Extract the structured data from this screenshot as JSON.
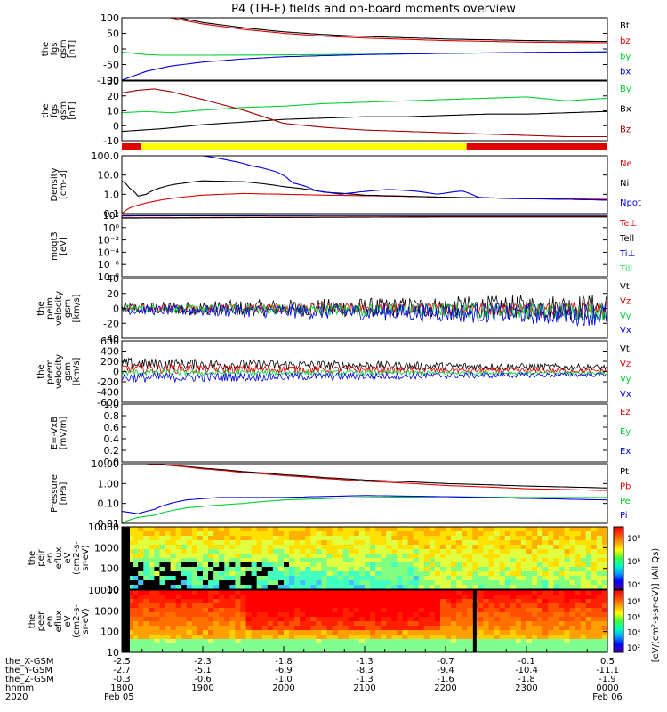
{
  "title": "P4 (TH-E) fields and on-board moments overview",
  "colors": {
    "black": "#000000",
    "red": "#e00000",
    "dred": "#a00000",
    "green": "#00d030",
    "blue": "#0000e0",
    "green2": "#30e060"
  },
  "panels": [
    {
      "id": "fgs-gsm",
      "ylabel": [
        "the",
        "fgs",
        "gsm",
        "[nT]"
      ],
      "type": "line",
      "ylim": [
        -100,
        100
      ],
      "ticks": [
        100,
        50,
        0,
        -50,
        -100
      ],
      "legend": [
        {
          "text": "Bt",
          "color": "black"
        },
        {
          "text": "bz",
          "color": "red"
        },
        {
          "text": "by",
          "color": "green"
        },
        {
          "text": "bx",
          "color": "blue"
        }
      ]
    },
    {
      "id": "fgs-dsl",
      "ylabel": [
        "the",
        "fgs",
        "gsm",
        "[nT]"
      ],
      "type": "line",
      "ylim": [
        -15,
        30
      ],
      "ticks": [
        30,
        20,
        10,
        0,
        -10
      ],
      "legend": [
        {
          "text": "By",
          "color": "green"
        },
        {
          "text": "Bx",
          "color": "black"
        },
        {
          "text": "Bz",
          "color": "dred"
        }
      ]
    },
    {
      "id": "density",
      "ylabel": [
        "Density",
        "[cm-3]"
      ],
      "type": "log",
      "ylim": [
        0.1,
        100
      ],
      "ticks": [
        "100.0",
        "10.0",
        "1.0",
        "0.1"
      ],
      "legend": [
        {
          "text": "Ne",
          "color": "red"
        },
        {
          "text": "Ni",
          "color": "black"
        },
        {
          "text": "Npot",
          "color": "blue"
        }
      ]
    },
    {
      "id": "temperature",
      "ylabel": [
        "moqt3",
        "[eV]"
      ],
      "type": "log",
      "ylim": [
        1e-08,
        100
      ],
      "ticks": [
        "10²",
        "10⁰",
        "10⁻²",
        "10⁻⁴",
        "10⁻⁶",
        "10⁻⁸"
      ],
      "legend": [
        {
          "text": "Te⊥",
          "color": "red"
        },
        {
          "text": "Tell",
          "color": "black"
        },
        {
          "text": "Ti⊥",
          "color": "blue"
        },
        {
          "text": "Till",
          "color": "green2"
        }
      ]
    },
    {
      "id": "peim-velocity",
      "ylabel": [
        "the",
        "peim",
        "velocity",
        "gsm",
        "[km/s]"
      ],
      "type": "line",
      "ylim": [
        -40,
        40
      ],
      "ticks": [
        40,
        20,
        0,
        -20,
        -40
      ],
      "legend": [
        {
          "text": "Vt",
          "color": "black"
        },
        {
          "text": "Vz",
          "color": "red"
        },
        {
          "text": "Vy",
          "color": "green"
        },
        {
          "text": "Vx",
          "color": "blue"
        }
      ]
    },
    {
      "id": "peem-velocity",
      "ylabel": [
        "the",
        "peem",
        "velocity",
        "gsm",
        "[km/s]"
      ],
      "type": "line",
      "ylim": [
        -600,
        600
      ],
      "ticks": [
        600,
        400,
        200,
        0,
        -200,
        -400,
        -600
      ],
      "legend": [
        {
          "text": "Vt",
          "color": "black"
        },
        {
          "text": "Vz",
          "color": "red"
        },
        {
          "text": "Vy",
          "color": "green"
        },
        {
          "text": "Vx",
          "color": "blue"
        }
      ]
    },
    {
      "id": "efield",
      "ylabel": [
        "E=-VxB",
        "[mV/m]"
      ],
      "type": "line",
      "ylim": [
        0,
        1
      ],
      "ticks": [
        "1.0",
        "0.8",
        "0.6",
        "0.4",
        "0.2",
        "0.0"
      ],
      "legend": [
        {
          "text": "Ez",
          "color": "red"
        },
        {
          "text": "Ey",
          "color": "green"
        },
        {
          "text": "Ex",
          "color": "blue"
        }
      ]
    },
    {
      "id": "pressure",
      "ylabel": [
        "Pressure",
        "[nPa]"
      ],
      "type": "log",
      "ylim": [
        0.01,
        10
      ],
      "ticks": [
        "10.00",
        "1.00",
        "0.10",
        "0.01"
      ],
      "legend": [
        {
          "text": "Pt",
          "color": "black"
        },
        {
          "text": "Pb",
          "color": "red"
        },
        {
          "text": "Pe",
          "color": "green"
        },
        {
          "text": "Pi",
          "color": "blue"
        }
      ]
    },
    {
      "id": "peir-spectrogram",
      "ylabel": [
        "the",
        "peir",
        "en",
        "eflux",
        "eV",
        "(cm2-s-",
        "sr-eV)"
      ],
      "type": "spectrogram",
      "ylim": [
        10,
        10000
      ],
      "ticks": [
        "10000",
        "1000",
        "100",
        "10"
      ],
      "colorbar_ticks": [
        "10⁸",
        "10⁶",
        "10⁴"
      ]
    },
    {
      "id": "peer-spectrogram",
      "ylabel": [
        "the",
        "peer",
        "en",
        "eflux",
        "eV",
        "(cm2-s-",
        "sr-eV)"
      ],
      "type": "spectrogram",
      "ylim": [
        10,
        10000
      ],
      "ticks": [
        "10000",
        "1000",
        "100",
        "10"
      ],
      "colorbar_ticks": [
        "10⁸",
        "10⁶",
        "10⁴",
        "10²"
      ]
    }
  ],
  "colorbar_label": "[eV/(cm²-s-sr-eV)] (All Qs)",
  "mode_bar": [
    {
      "from": 0,
      "to": 0.04,
      "color": "red"
    },
    {
      "from": 0.04,
      "to": 0.71,
      "color": "yellow"
    },
    {
      "from": 0.71,
      "to": 1,
      "color": "red"
    }
  ],
  "chart_data": {
    "type": "line",
    "title": "P4 (TH-E) fields and on-board moments overview",
    "x_hours": [
      0,
      1,
      2,
      3,
      4,
      5,
      6
    ],
    "x_labels": [
      "1800",
      "1900",
      "2000",
      "2100",
      "2200",
      "2300",
      "0000"
    ],
    "date_labels": [
      "Feb 05",
      "Feb 06"
    ],
    "ephemeris": {
      "rows": [
        {
          "label": "the_X-GSM",
          "values": [
            "-2.5",
            "-2.3",
            "-1.8",
            "-1.3",
            "-0.7",
            "-0.1",
            "0.5"
          ]
        },
        {
          "label": "the_Y-GSM",
          "values": [
            "-2.7",
            "-5.1",
            "-6.9",
            "-8.3",
            "-9.4",
            "-10.4",
            "-11.1"
          ]
        },
        {
          "label": "the_Z-GSM",
          "values": [
            "-0.3",
            "-0.6",
            "-1.0",
            "-1.3",
            "-1.6",
            "-1.8",
            "-1.9"
          ]
        },
        {
          "label": "hhmm",
          "values": [
            "1800",
            "1900",
            "2000",
            "2100",
            "2200",
            "2300",
            "0000"
          ]
        },
        {
          "label": "2020",
          "values": [
            "Feb 05",
            "",
            "",
            "",
            "",
            "",
            "Feb 06"
          ]
        }
      ]
    },
    "series": {
      "fgs-gsm": [
        {
          "name": "Bt",
          "color": "black",
          "x": [
            0.7,
            1,
            1.5,
            2,
            2.5,
            3,
            4,
            5,
            6
          ],
          "y": [
            100,
            85,
            68,
            55,
            46,
            40,
            32,
            27,
            24
          ]
        },
        {
          "name": "bz",
          "color": "red",
          "x": [
            0.6,
            1,
            1.5,
            2,
            2.5,
            3,
            4,
            5,
            6
          ],
          "y": [
            100,
            80,
            63,
            50,
            41,
            35,
            27,
            22,
            20
          ]
        },
        {
          "name": "by",
          "color": "green",
          "x": [
            0,
            0.3,
            0.5,
            1,
            2,
            3,
            4,
            5,
            6
          ],
          "y": [
            -10,
            -18,
            -20,
            -20,
            -19,
            -17,
            -14,
            -12,
            -10
          ]
        },
        {
          "name": "bx",
          "color": "blue",
          "x": [
            0,
            0.3,
            0.6,
            1,
            1.5,
            2,
            3,
            4,
            5,
            6
          ],
          "y": [
            -100,
            -72,
            -55,
            -42,
            -32,
            -25,
            -18,
            -14,
            -11,
            -9
          ]
        }
      ],
      "fgs-dsl": [
        {
          "name": "By",
          "color": "green",
          "x": [
            0,
            0.3,
            0.6,
            1,
            1.5,
            2,
            2.5,
            3,
            3.5,
            4,
            4.5,
            5,
            5.5,
            6
          ],
          "y": [
            6,
            7,
            6,
            8,
            10,
            11,
            13,
            14,
            15,
            16,
            17,
            18,
            15,
            17
          ]
        },
        {
          "name": "Bx",
          "color": "black",
          "x": [
            0,
            0.5,
            1,
            1.5,
            2,
            2.5,
            3,
            3.5,
            4,
            4.5,
            5,
            5.5,
            6
          ],
          "y": [
            -8,
            -6,
            -3,
            -1,
            1,
            2,
            3,
            3,
            4,
            5,
            5,
            6,
            7
          ]
        },
        {
          "name": "Bz",
          "color": "dred",
          "x": [
            0,
            0.2,
            0.4,
            0.6,
            1,
            1.5,
            2,
            2.5,
            3,
            3.5,
            4,
            4.5,
            5,
            5.5,
            6
          ],
          "y": [
            21,
            23,
            24,
            22,
            16,
            8,
            -2,
            -5,
            -7,
            -8,
            -9,
            -10,
            -11,
            -12,
            -12
          ]
        }
      ],
      "density": [
        {
          "name": "Ne",
          "color": "red",
          "x": [
            0,
            0.1,
            0.3,
            0.6,
            1,
            1.5,
            2,
            2.5,
            3,
            4,
            5,
            6
          ],
          "y": [
            0.1,
            0.2,
            0.35,
            0.6,
            0.9,
            1.1,
            1.0,
            0.9,
            0.85,
            0.7,
            0.6,
            0.55
          ]
        },
        {
          "name": "Ni",
          "color": "black",
          "x": [
            0,
            0.1,
            0.2,
            0.3,
            0.6,
            1,
            1.5,
            2,
            2.5,
            3,
            4,
            5,
            6
          ],
          "y": [
            5,
            2,
            0.8,
            1.0,
            3,
            5,
            4.5,
            2.5,
            1.3,
            0.9,
            0.7,
            0.6,
            0.5
          ]
        },
        {
          "name": "Npot",
          "color": "blue",
          "x": [
            1.0,
            1.3,
            1.6,
            1.9,
            2.1,
            2.4,
            2.7,
            3.0,
            3.3,
            3.6,
            3.9,
            4.2,
            4.4,
            4.8,
            5.5,
            6
          ],
          "y": [
            100,
            60,
            30,
            15,
            4,
            1.5,
            1.0,
            1.4,
            1.8,
            1.5,
            1.0,
            1.5,
            0.7,
            0.6,
            0.55,
            0.5
          ]
        }
      ],
      "temperature": [
        {
          "name": "Te⊥",
          "color": "red",
          "x": [
            0,
            1,
            2,
            3,
            4,
            5,
            6
          ],
          "y": [
            40,
            45,
            50,
            55,
            60,
            60,
            60
          ]
        },
        {
          "name": "Tell",
          "color": "black",
          "x": [
            0,
            1,
            2,
            3,
            4,
            5,
            6
          ],
          "y": [
            35,
            40,
            45,
            50,
            55,
            55,
            55
          ]
        },
        {
          "name": "Ti⊥",
          "color": "blue",
          "x": [
            0,
            1,
            2,
            3,
            4,
            5,
            6
          ],
          "y": [
            80,
            85,
            90,
            95,
            95,
            95,
            95
          ]
        }
      ],
      "peim-velocity": [
        {
          "name": "Vt",
          "color": "black",
          "x": [
            0,
            6
          ],
          "y": [
            0,
            2
          ],
          "noise": [
            8,
            18
          ]
        },
        {
          "name": "Vz",
          "color": "red",
          "x": [
            0,
            6
          ],
          "y": [
            0,
            0
          ],
          "noise": [
            5,
            10
          ]
        },
        {
          "name": "Vy",
          "color": "green",
          "x": [
            0,
            6
          ],
          "y": [
            0,
            -4
          ],
          "noise": [
            5,
            12
          ]
        },
        {
          "name": "Vx",
          "color": "blue",
          "x": [
            0,
            6
          ],
          "y": [
            -2,
            -8
          ],
          "noise": [
            6,
            16
          ]
        }
      ],
      "peem-velocity": [
        {
          "name": "Vt",
          "color": "black",
          "x": [
            0,
            6
          ],
          "y": [
            150,
            80
          ],
          "noise": [
            120,
            60
          ]
        },
        {
          "name": "Vz",
          "color": "red",
          "x": [
            0,
            6
          ],
          "y": [
            60,
            10
          ],
          "noise": [
            100,
            40
          ]
        },
        {
          "name": "Vy",
          "color": "green",
          "x": [
            0,
            6
          ],
          "y": [
            -20,
            -30
          ],
          "noise": [
            60,
            30
          ]
        },
        {
          "name": "Vx",
          "color": "blue",
          "x": [
            0,
            6
          ],
          "y": [
            -120,
            -60
          ],
          "noise": [
            100,
            40
          ]
        }
      ],
      "pressure": [
        {
          "name": "Pt",
          "color": "black",
          "x": [
            0.3,
            1,
            1.5,
            2,
            2.5,
            3,
            4,
            5,
            6
          ],
          "y": [
            10,
            6,
            4,
            2.8,
            2.0,
            1.5,
            1.0,
            0.75,
            0.6
          ]
        },
        {
          "name": "Pb",
          "color": "red",
          "x": [
            0.3,
            1,
            1.5,
            2,
            2.5,
            3,
            4,
            5,
            6
          ],
          "y": [
            10,
            5.5,
            3.6,
            2.5,
            1.8,
            1.3,
            0.8,
            0.55,
            0.45
          ]
        },
        {
          "name": "Pe",
          "color": "green",
          "x": [
            0,
            0.2,
            0.4,
            0.8,
            1.5,
            2,
            3,
            4,
            5,
            6
          ],
          "y": [
            0.01,
            0.02,
            0.025,
            0.06,
            0.1,
            0.15,
            0.2,
            0.22,
            0.2,
            0.2
          ]
        },
        {
          "name": "Pi",
          "color": "blue",
          "x": [
            0,
            0.2,
            0.4,
            0.8,
            1.2,
            2,
            3,
            4,
            5,
            6
          ],
          "y": [
            0.04,
            0.03,
            0.05,
            0.15,
            0.2,
            0.2,
            0.25,
            0.22,
            0.18,
            0.15
          ]
        }
      ]
    }
  }
}
